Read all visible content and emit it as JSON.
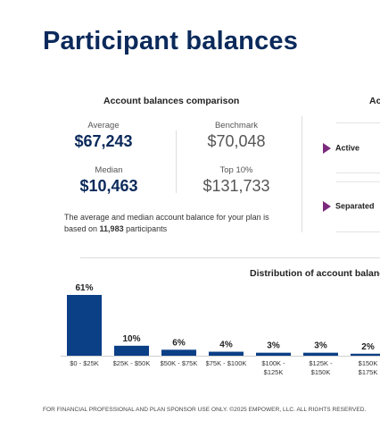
{
  "page": {
    "title": "Participant balances"
  },
  "comparison": {
    "title": "Account balances comparison",
    "average": {
      "label": "Average",
      "value": "$67,243"
    },
    "benchmark": {
      "label": "Benchmark",
      "value": "$70,048"
    },
    "median": {
      "label": "Median",
      "value": "$10,463"
    },
    "top10": {
      "label": "Top 10%",
      "value": "$131,733"
    },
    "note_prefix": "The average and median account balance for your plan is based on ",
    "note_count": "11,983",
    "note_suffix": " participants"
  },
  "right_panel": {
    "title": "Ac",
    "items": [
      {
        "label": "Active"
      },
      {
        "label": "Separated"
      }
    ],
    "chevron_color": "#7b2a7d"
  },
  "distribution": {
    "title": "Distribution of account balanc"
  },
  "chart_data": {
    "type": "bar",
    "title": "Distribution of account balanc",
    "categories": [
      [
        "$0 - $25K"
      ],
      [
        "$25K - $50K"
      ],
      [
        "$50K - $75K"
      ],
      [
        "$75K - $100K"
      ],
      [
        "$100K -",
        "$125K"
      ],
      [
        "$125K -",
        "$150K"
      ],
      [
        "$150K",
        "$175K"
      ]
    ],
    "values": [
      61,
      10,
      6,
      4,
      3,
      3,
      2
    ],
    "value_labels": [
      "61%",
      "10%",
      "6%",
      "4%",
      "3%",
      "3%",
      "2%"
    ],
    "ylim": [
      0,
      61
    ],
    "bar_color": "#0b3f86"
  },
  "footer": {
    "text": "FOR FINANCIAL PROFESSIONAL AND PLAN SPONSOR USE ONLY. ©2025 EMPOWER, LLC. ALL RIGHTS RESERVED."
  }
}
